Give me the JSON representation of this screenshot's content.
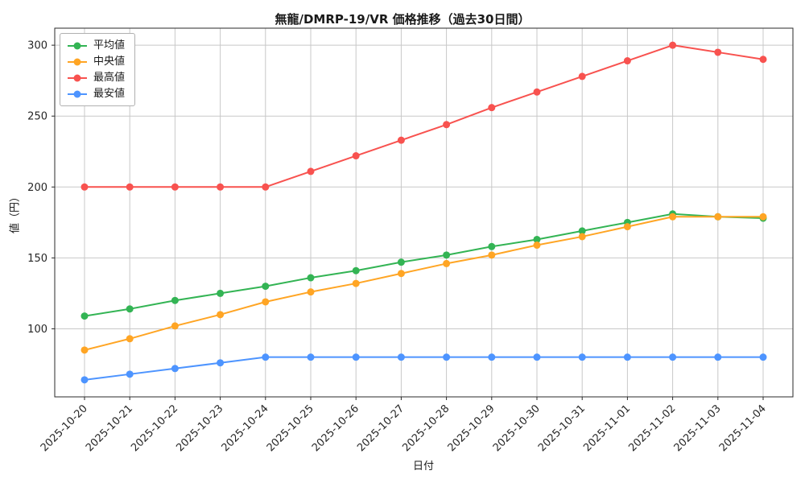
{
  "chart_data": {
    "type": "line",
    "title": "無龍/DMRP-19/VR 価格推移（過去30日間）",
    "xlabel": "日付",
    "ylabel": "値（円）",
    "categories": [
      "2025-10-20",
      "2025-10-21",
      "2025-10-22",
      "2025-10-23",
      "2025-10-24",
      "2025-10-25",
      "2025-10-26",
      "2025-10-27",
      "2025-10-28",
      "2025-10-29",
      "2025-10-30",
      "2025-10-31",
      "2025-11-01",
      "2025-11-02",
      "2025-11-03",
      "2025-11-04"
    ],
    "series": [
      {
        "key": "mean",
        "name": "平均値",
        "color": "#33b454",
        "values": [
          109,
          114,
          120,
          125,
          130,
          136,
          141,
          147,
          152,
          158,
          163,
          169,
          175,
          181,
          179,
          178
        ]
      },
      {
        "key": "median",
        "name": "中央値",
        "color": "#ffa524",
        "values": [
          85,
          93,
          102,
          110,
          119,
          126,
          132,
          139,
          146,
          152,
          159,
          165,
          172,
          179,
          179,
          179
        ]
      },
      {
        "key": "max",
        "name": "最高値",
        "color": "#f8524f",
        "values": [
          200,
          200,
          200,
          200,
          200,
          211,
          222,
          233,
          244,
          256,
          267,
          278,
          289,
          300,
          295,
          290
        ]
      },
      {
        "key": "min",
        "name": "最安値",
        "color": "#4d94ff",
        "values": [
          64,
          68,
          72,
          76,
          80,
          80,
          80,
          80,
          80,
          80,
          80,
          80,
          80,
          80,
          80,
          80
        ]
      }
    ],
    "yticks": [
      100,
      150,
      200,
      250,
      300
    ],
    "ylim": [
      52,
      312
    ],
    "grid": true,
    "legend_position": "upper left",
    "colors": {
      "grid": "#c8c8c8",
      "spine": "#2a2a2a",
      "tick_label": "#262626",
      "background": "#ffffff"
    }
  }
}
